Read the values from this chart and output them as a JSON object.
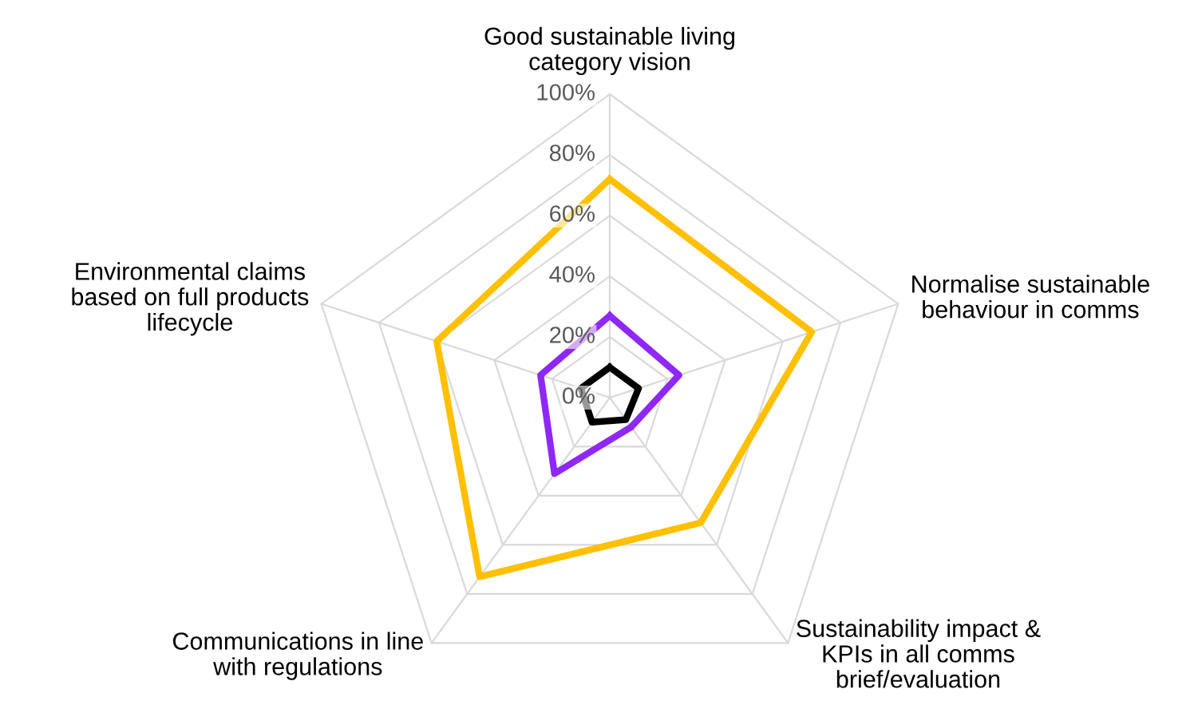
{
  "chart_data": {
    "type": "radar",
    "categories": [
      "Good sustainable living\ncategory vision",
      "Normalise sustainable\nbehaviour in comms",
      "Sustainability impact &\nKPIs in all comms\nbrief/evaluation",
      "Communications in line\nwith regulations",
      "Environmental claims\nbased on full products\nlifecycle"
    ],
    "series": [
      {
        "color": "#ffc000",
        "values": [
          72,
          70,
          51,
          73,
          60
        ]
      },
      {
        "color": "#8f28f5",
        "values": [
          27,
          24,
          12,
          31,
          24
        ]
      },
      {
        "color": "#000000",
        "values": [
          10,
          10,
          9,
          10,
          10
        ]
      }
    ],
    "ylim": [
      0,
      100
    ],
    "yticks": [
      {
        "value": 0,
        "label": "0%"
      },
      {
        "value": 20,
        "label": "20%"
      },
      {
        "value": 40,
        "label": "40%"
      },
      {
        "value": 60,
        "label": "60%"
      },
      {
        "value": 80,
        "label": "80%"
      },
      {
        "value": 100,
        "label": "100%"
      }
    ],
    "grid": true
  }
}
